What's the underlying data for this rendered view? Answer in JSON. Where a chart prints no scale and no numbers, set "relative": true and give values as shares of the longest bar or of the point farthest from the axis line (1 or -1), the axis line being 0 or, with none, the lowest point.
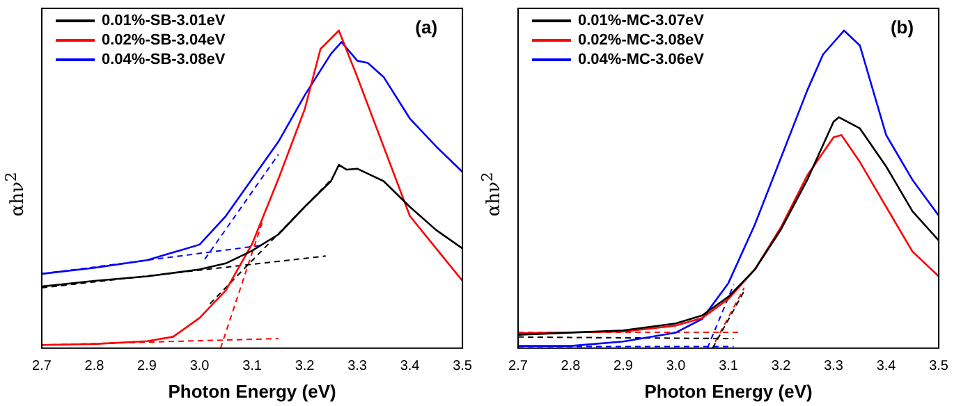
{
  "chart_data": [
    {
      "type": "line",
      "relative": true,
      "xlabel": "Photon Energy (eV)",
      "ylabel": "αhν$^{2}$",
      "annotations": [
        "(a)"
      ],
      "legend": "top left",
      "xlim": [
        2.7,
        3.5
      ],
      "xticks": [
        2.7,
        2.8,
        2.9,
        {
          "value": 3.0,
          "label": "3.0"
        },
        3.1,
        3.2,
        3.3,
        3.4,
        3.5
      ],
      "series": [
        {
          "name": "0.01%-SB-3.01eV",
          "color": "#000000",
          "x": [
            2.7,
            2.8,
            2.9,
            3.0,
            3.05,
            3.1,
            3.15,
            3.2,
            3.25,
            3.265,
            3.28,
            3.3,
            3.35,
            3.4,
            3.45,
            3.5
          ],
          "values": [
            0.194,
            0.212,
            0.226,
            0.248,
            0.267,
            0.307,
            0.358,
            0.445,
            0.526,
            0.577,
            0.562,
            0.565,
            0.526,
            0.445,
            0.372,
            0.314
          ]
        },
        {
          "name": "0.02%-SB-3.04eV",
          "color": "#ff0000",
          "x": [
            2.7,
            2.8,
            2.9,
            2.95,
            3.0,
            3.05,
            3.1,
            3.15,
            3.2,
            3.23,
            3.265,
            3.3,
            3.35,
            3.4,
            3.45,
            3.5
          ],
          "values": [
            0.01,
            0.013,
            0.022,
            0.036,
            0.095,
            0.182,
            0.328,
            0.533,
            0.752,
            0.942,
            1.0,
            0.854,
            0.635,
            0.416,
            0.314,
            0.212
          ]
        },
        {
          "name": "0.04%-SB-3.08eV",
          "color": "#0000ff",
          "x": [
            2.7,
            2.8,
            2.9,
            3.0,
            3.05,
            3.1,
            3.15,
            3.2,
            3.25,
            3.27,
            3.3,
            3.32,
            3.35,
            3.4,
            3.45,
            3.5
          ],
          "values": [
            0.234,
            0.253,
            0.277,
            0.326,
            0.416,
            0.533,
            0.65,
            0.796,
            0.927,
            0.964,
            0.905,
            0.898,
            0.854,
            0.723,
            0.635,
            0.555
          ]
        },
        {
          "color": "#000000",
          "line_style": "dashed",
          "x": [
            2.7,
            3.24
          ],
          "values": [
            0.19,
            0.29
          ]
        },
        {
          "color": "#000000",
          "line_style": "dashed",
          "x": [
            3.02,
            3.25
          ],
          "values": [
            0.14,
            0.53
          ]
        },
        {
          "color": "#ff0000",
          "line_style": "dashed",
          "x": [
            2.7,
            3.15
          ],
          "values": [
            0.01,
            0.03
          ]
        },
        {
          "color": "#ff0000",
          "line_style": "dashed",
          "x": [
            3.04,
            3.12
          ],
          "values": [
            0.0,
            0.4
          ]
        },
        {
          "color": "#0000ff",
          "line_style": "dashed",
          "x": [
            2.7,
            3.12
          ],
          "values": [
            0.234,
            0.324
          ]
        },
        {
          "color": "#0000ff",
          "line_style": "dashed",
          "x": [
            3.01,
            3.15
          ],
          "values": [
            0.28,
            0.61
          ]
        }
      ]
    },
    {
      "type": "line",
      "relative": true,
      "xlabel": "Photon Energy (eV)",
      "ylabel": "αhν$^{2}$",
      "annotations": [
        "(b)"
      ],
      "legend": "top left",
      "xlim": [
        2.7,
        3.5
      ],
      "xticks": [
        2.7,
        2.8,
        2.9,
        {
          "value": 3.0,
          "label": "3.0"
        },
        3.1,
        3.2,
        3.3,
        3.4,
        3.5
      ],
      "series": [
        {
          "name": "0.01%-MC-3.07eV",
          "color": "#000000",
          "x": [
            2.7,
            2.9,
            3.0,
            3.05,
            3.1,
            3.15,
            3.2,
            3.25,
            3.3,
            3.31,
            3.35,
            3.4,
            3.45,
            3.5
          ],
          "values": [
            0.042,
            0.056,
            0.078,
            0.103,
            0.162,
            0.247,
            0.374,
            0.53,
            0.713,
            0.727,
            0.692,
            0.572,
            0.431,
            0.339
          ]
        },
        {
          "name": "0.02%-MC-3.08eV",
          "color": "#ff0000",
          "x": [
            2.7,
            2.9,
            3.0,
            3.05,
            3.1,
            3.15,
            3.2,
            3.25,
            3.3,
            3.315,
            3.35,
            3.4,
            3.45,
            3.5
          ],
          "values": [
            0.047,
            0.052,
            0.071,
            0.095,
            0.155,
            0.247,
            0.381,
            0.544,
            0.664,
            0.671,
            0.586,
            0.445,
            0.304,
            0.226
          ]
        },
        {
          "name": "0.04%-MC-3.06eV",
          "color": "#0000ff",
          "x": [
            2.7,
            2.8,
            2.9,
            3.0,
            3.05,
            3.1,
            3.15,
            3.2,
            3.25,
            3.28,
            3.32,
            3.35,
            3.4,
            3.45,
            3.5
          ],
          "values": [
            0.007,
            0.007,
            0.021,
            0.049,
            0.092,
            0.205,
            0.388,
            0.6,
            0.812,
            0.925,
            1.0,
            0.953,
            0.671,
            0.53,
            0.417
          ]
        },
        {
          "color": "#000000",
          "line_style": "dashed",
          "x": [
            2.7,
            3.11
          ],
          "values": [
            0.035,
            0.03
          ]
        },
        {
          "color": "#000000",
          "line_style": "dashed",
          "x": [
            3.07,
            3.13
          ],
          "values": [
            0.0,
            0.18
          ]
        },
        {
          "color": "#ff0000",
          "line_style": "dashed",
          "x": [
            2.7,
            3.12
          ],
          "values": [
            0.05,
            0.05
          ]
        },
        {
          "color": "#ff0000",
          "line_style": "dashed",
          "x": [
            3.075,
            3.13
          ],
          "values": [
            0.02,
            0.19
          ]
        },
        {
          "color": "#0000ff",
          "line_style": "dashed",
          "x": [
            2.7,
            3.11
          ],
          "values": [
            0.005,
            0.005
          ]
        },
        {
          "color": "#0000ff",
          "line_style": "dashed",
          "x": [
            3.06,
            3.11
          ],
          "values": [
            0.0,
            0.2
          ]
        }
      ]
    }
  ]
}
